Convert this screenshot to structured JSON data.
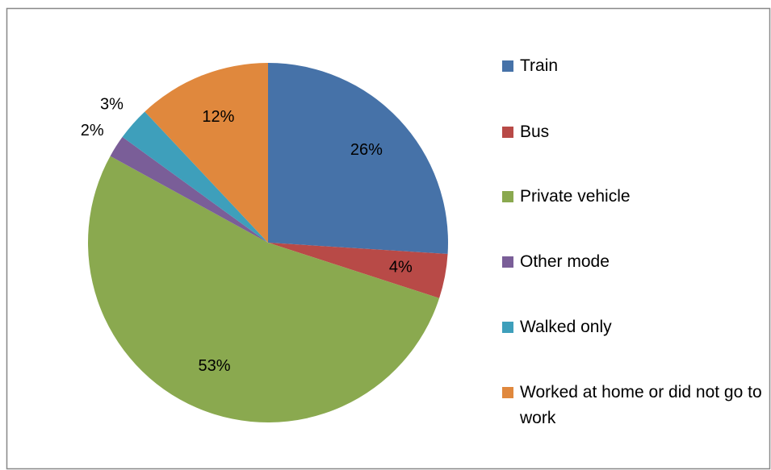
{
  "chart_data": {
    "type": "pie",
    "categories": [
      "Train",
      "Bus",
      "Private vehicle",
      "Other mode",
      "Walked only",
      "Worked at home or did not go to work"
    ],
    "values": [
      26,
      4,
      53,
      2,
      3,
      12
    ],
    "value_labels": [
      "26%",
      "4%",
      "53%",
      "2%",
      "3%",
      "12%"
    ],
    "colors": [
      "#4672a8",
      "#b84a47",
      "#8aa94f",
      "#7a5e98",
      "#3e9fbb",
      "#e0883d"
    ],
    "legend": "right"
  }
}
